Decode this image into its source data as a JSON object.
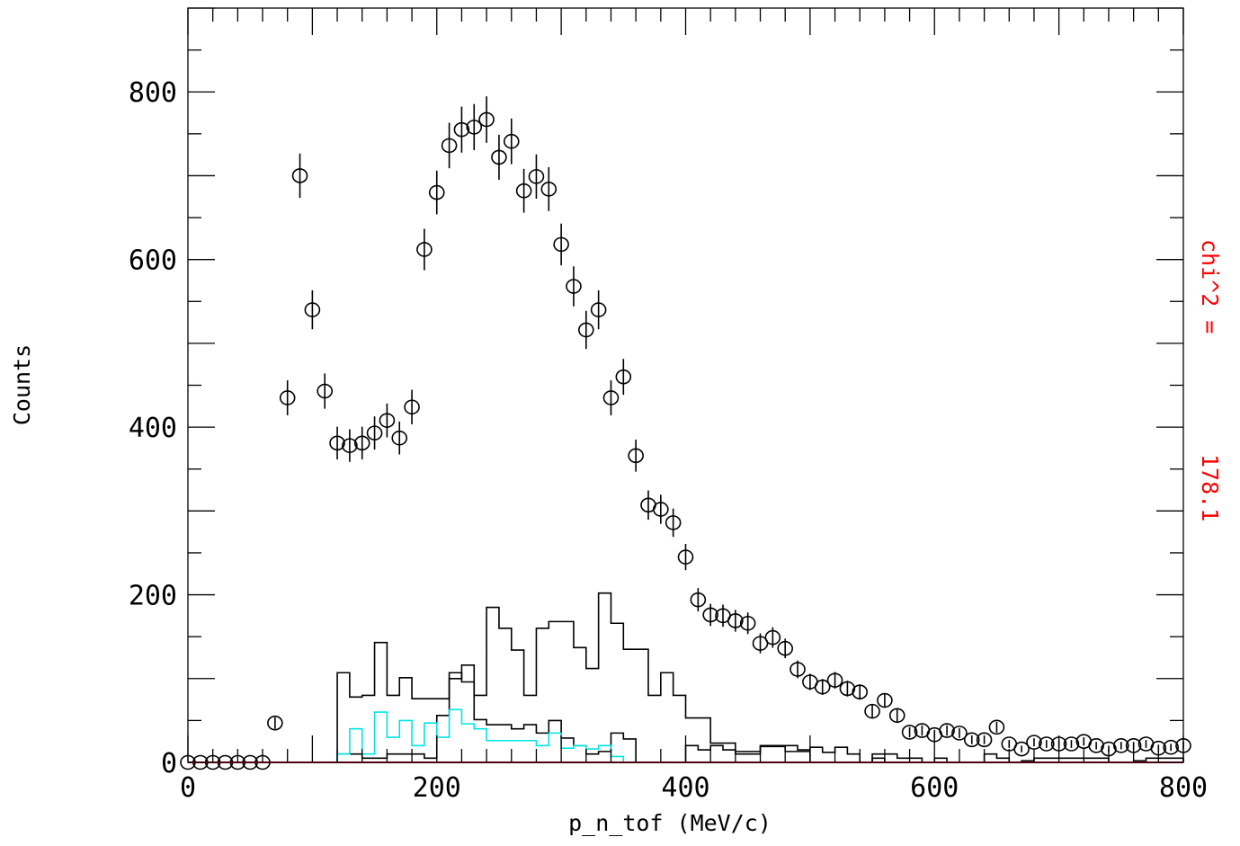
{
  "chart_data": {
    "type": "scatter",
    "title": "",
    "xlabel": "p_n_tof (MeV/c)",
    "ylabel": "Counts",
    "xlim": [
      0,
      800
    ],
    "ylim": [
      0,
      900
    ],
    "x_ticks": [
      0,
      200,
      400,
      600,
      800
    ],
    "y_ticks": [
      0,
      200,
      400,
      600,
      800
    ],
    "annotation": {
      "label": "chi^2 =",
      "value": "178.1",
      "color": "#ff0000"
    },
    "data_points": {
      "x": [
        0,
        10,
        20,
        30,
        40,
        50,
        60,
        70,
        80,
        90,
        100,
        110,
        120,
        130,
        140,
        150,
        160,
        170,
        180,
        190,
        200,
        210,
        220,
        230,
        240,
        250,
        260,
        270,
        280,
        290,
        300,
        310,
        320,
        330,
        340,
        350,
        360,
        370,
        380,
        390,
        400,
        410,
        420,
        430,
        440,
        450,
        460,
        470,
        480,
        490,
        500,
        510,
        520,
        530,
        540,
        550,
        560,
        570,
        580,
        590,
        600,
        610,
        620,
        630,
        640,
        650,
        660,
        670,
        680,
        690,
        700,
        710,
        720,
        730,
        740,
        750,
        760,
        770,
        780,
        790,
        800
      ],
      "y": [
        0,
        0,
        0,
        0,
        0,
        0,
        0,
        47,
        435,
        700,
        540,
        443,
        381,
        378,
        381,
        393,
        408,
        387,
        424,
        612,
        680,
        736,
        755,
        758,
        767,
        722,
        741,
        682,
        699,
        684,
        618,
        568,
        516,
        540,
        435,
        460,
        366,
        307,
        302,
        286,
        245,
        194,
        176,
        175,
        169,
        166,
        142,
        149,
        136,
        111,
        96,
        90,
        98,
        88,
        84,
        61,
        74,
        56,
        36,
        38,
        33,
        38,
        35,
        27,
        27,
        42,
        22,
        16,
        24,
        22,
        22,
        22,
        25,
        20,
        16,
        20,
        20,
        22,
        17,
        18,
        20
      ],
      "error_bars": true
    },
    "series": [
      {
        "name": "",
        "style": "histogram",
        "color": "#000000",
        "bin_width": 10,
        "x": [
          0,
          10,
          20,
          30,
          40,
          50,
          60,
          70,
          80,
          90,
          100,
          110,
          120,
          130,
          140,
          150,
          160,
          170,
          180,
          190,
          200,
          210,
          220,
          230,
          240,
          250,
          260,
          270,
          280,
          290,
          300,
          310,
          320,
          330,
          340,
          350,
          360,
          370,
          380,
          390,
          400,
          410,
          420,
          430,
          440,
          450,
          460,
          470,
          480,
          490,
          500,
          510,
          520,
          530,
          540,
          550,
          560,
          570,
          580,
          590,
          600,
          610,
          620,
          630,
          640,
          650,
          660,
          670,
          680,
          690,
          700,
          710,
          720,
          730,
          740,
          750,
          760,
          770,
          780,
          790
        ],
        "values": [
          0,
          0,
          0,
          0,
          0,
          0,
          0,
          0,
          0,
          0,
          0,
          0,
          107,
          78,
          80,
          143,
          80,
          101,
          76,
          76,
          76,
          100,
          116,
          80,
          185,
          160,
          134,
          80,
          160,
          168,
          168,
          137,
          112,
          202,
          166,
          135,
          135,
          80,
          107,
          80,
          53,
          53,
          23,
          23,
          13,
          13,
          19,
          19,
          13,
          13,
          0,
          0,
          0,
          0,
          0,
          5,
          0,
          0,
          0,
          0,
          0,
          0,
          0,
          0,
          0,
          0,
          0,
          0,
          0,
          0,
          0,
          0,
          0,
          0,
          0,
          0,
          0,
          0,
          0,
          0
        ]
      },
      {
        "name": "",
        "style": "histogram",
        "color": "#000000",
        "bin_width": 10,
        "x": [
          0,
          10,
          20,
          30,
          40,
          50,
          60,
          70,
          80,
          90,
          100,
          110,
          120,
          130,
          140,
          150,
          160,
          170,
          180,
          190,
          200,
          210,
          220,
          230,
          240,
          250,
          260,
          270,
          280,
          290,
          300,
          310,
          320,
          330,
          340,
          350,
          360,
          370,
          380,
          390,
          400,
          410,
          420,
          430,
          440,
          450,
          460,
          470,
          480,
          490,
          500,
          510,
          520,
          530,
          540,
          550,
          560,
          570,
          580,
          590,
          600,
          610,
          620,
          630,
          640,
          650,
          660,
          670,
          680,
          690,
          700,
          710,
          720,
          730,
          740,
          750,
          760,
          770,
          780,
          790
        ],
        "values": [
          0,
          0,
          0,
          0,
          0,
          0,
          0,
          0,
          0,
          0,
          0,
          0,
          10,
          10,
          5,
          5,
          10,
          10,
          10,
          5,
          56,
          107,
          96,
          51,
          45,
          45,
          40,
          45,
          35,
          50,
          29,
          20,
          10,
          13,
          35,
          28,
          0,
          0,
          0,
          0,
          20,
          15,
          20,
          15,
          10,
          10,
          20,
          20,
          20,
          15,
          18,
          12,
          18,
          10,
          0,
          10,
          10,
          5,
          5,
          0,
          5,
          0,
          0,
          0,
          10,
          5,
          0,
          2,
          5,
          5,
          5,
          5,
          5,
          5,
          0,
          0,
          2,
          5,
          5,
          5
        ]
      },
      {
        "name": "",
        "style": "histogram",
        "color": "#00e5e5",
        "bin_width": 10,
        "x": [
          120,
          130,
          140,
          150,
          160,
          170,
          180,
          190,
          200,
          210,
          220,
          230,
          240,
          250,
          260,
          270,
          280,
          290,
          300,
          310,
          320,
          330,
          340
        ],
        "values": [
          10,
          40,
          10,
          60,
          30,
          50,
          20,
          47,
          30,
          63,
          46,
          40,
          26,
          26,
          26,
          26,
          20,
          35,
          17,
          20,
          16,
          20,
          7
        ]
      }
    ]
  }
}
